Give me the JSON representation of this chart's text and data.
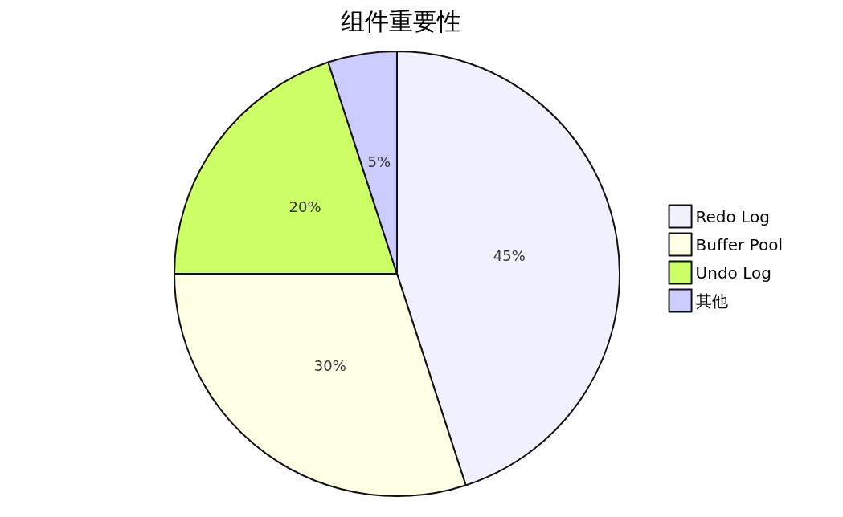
{
  "chart_data": {
    "type": "pie",
    "title": "组件重要性",
    "categories": [
      "Redo Log",
      "Buffer Pool",
      "Undo Log",
      "其他"
    ],
    "values": [
      45,
      30,
      20,
      5
    ],
    "colors": [
      "#f0f0fe",
      "#ffffe6",
      "#ccff66",
      "#ccccff"
    ],
    "value_labels": [
      "45%",
      "30%",
      "20%",
      "5%"
    ],
    "legend": "right"
  }
}
